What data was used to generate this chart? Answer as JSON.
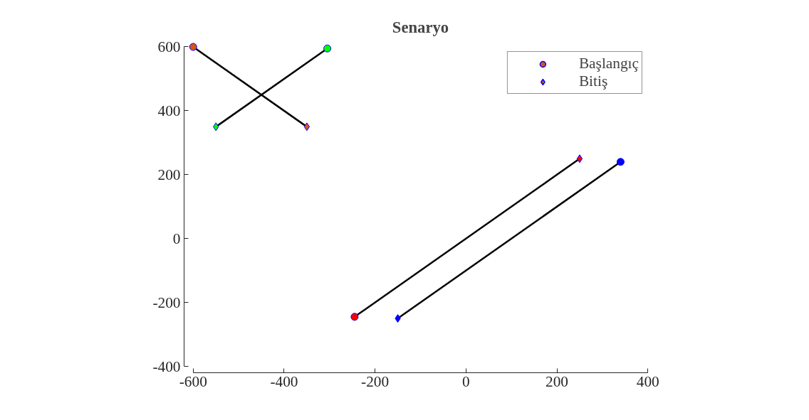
{
  "chart_data": {
    "type": "line",
    "title": "Senaryo",
    "xlim": [
      -600,
      400
    ],
    "ylim": [
      -400,
      600
    ],
    "xticks": [
      -600,
      -400,
      -200,
      0,
      200,
      400
    ],
    "yticks": [
      -400,
      -200,
      0,
      200,
      400,
      600
    ],
    "grid": false,
    "legend": "top right",
    "line_style": "solid",
    "series": [
      {
        "type": "line",
        "color": "#000000",
        "x": [
          -600,
          -350
        ],
        "values": [
          600,
          350
        ],
        "marker": "none"
      },
      {
        "type": "line",
        "color": "#000000",
        "x": [
          -305,
          -550
        ],
        "values": [
          595,
          350
        ],
        "marker": "none"
      },
      {
        "type": "line",
        "color": "#000000",
        "x": [
          -245,
          250
        ],
        "values": [
          -245,
          250
        ],
        "marker": "none"
      },
      {
        "type": "line",
        "color": "#000000",
        "x": [
          340,
          -150
        ],
        "values": [
          240,
          -250
        ],
        "marker": "none"
      },
      {
        "type": "scatter",
        "name": "Başlangıç",
        "color": "#d95319",
        "marker": "circle",
        "x": [
          -600,
          -305,
          -245,
          340
        ],
        "values": [
          600,
          595,
          -245,
          240
        ],
        "colors": [
          "#d95319",
          "#00ff00",
          "#ff0000",
          "#0000ff"
        ]
      },
      {
        "type": "scatter",
        "name": "Bitiş",
        "color": "#d95319",
        "marker": "diamond",
        "x": [
          -350,
          -550,
          250,
          -150
        ],
        "values": [
          350,
          350,
          250,
          -250
        ],
        "colors": [
          "#d95319",
          "#00ff00",
          "#ff0000",
          "#0000ff"
        ]
      }
    ]
  }
}
